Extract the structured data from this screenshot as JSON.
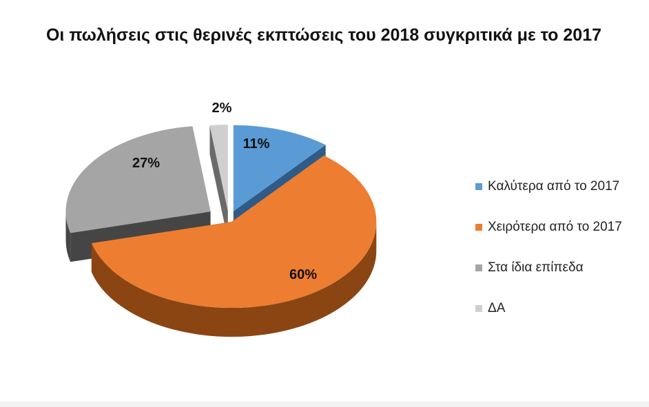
{
  "chart_data": {
    "type": "pie",
    "title": "Οι πωλήσεις στις θερινές εκπτώσεις του 2018 συγκριτικά με το 2017",
    "categories": [
      "Καλύτερα από το 2017",
      "Χειρότερα από το 2017",
      "Στα ίδια επίπεδα",
      "ΔΑ"
    ],
    "values": [
      11,
      60,
      27,
      2
    ],
    "data_labels": [
      "11%",
      "60%",
      "27%",
      "2%"
    ],
    "colors": [
      "#5b9bd5",
      "#ed7d31",
      "#a5a5a5",
      "#cfcfcf"
    ],
    "side_colors": [
      "#2e5b87",
      "#8b4513",
      "#454545",
      "#6a6a6a"
    ],
    "legend_position": "right",
    "exploded": true,
    "three_d": true
  }
}
